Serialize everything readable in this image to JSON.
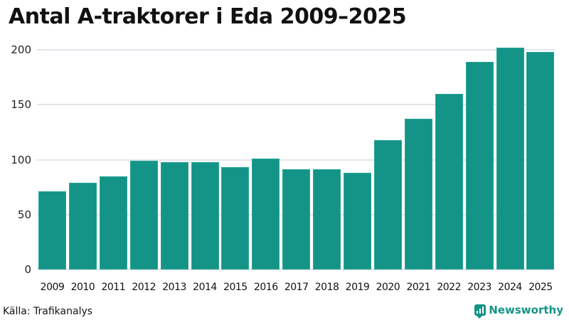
{
  "header": {
    "title": "Antal A-traktorer i Eda 2009–2025"
  },
  "footer": {
    "source": "Källa: Trafikanalys",
    "brand": "Newsworthy",
    "brand_icon": "newsworthy-logo-icon"
  },
  "colors": {
    "bar": "#139487",
    "grid": "#e4e4ec",
    "brand": "#139487"
  },
  "chart_data": {
    "type": "bar",
    "title": "Antal A-traktorer i Eda 2009–2025",
    "xlabel": "",
    "ylabel": "",
    "categories": [
      "2009",
      "2010",
      "2011",
      "2012",
      "2013",
      "2014",
      "2015",
      "2016",
      "2017",
      "2018",
      "2019",
      "2020",
      "2021",
      "2022",
      "2023",
      "2024",
      "2025"
    ],
    "values": [
      71,
      79,
      85,
      99,
      98,
      98,
      93,
      101,
      91,
      91,
      88,
      118,
      137,
      160,
      189,
      202,
      198
    ],
    "yticks": [
      "0",
      "50",
      "100",
      "150",
      "200"
    ],
    "ylim": [
      0,
      200
    ],
    "grid": true,
    "legend": null
  }
}
